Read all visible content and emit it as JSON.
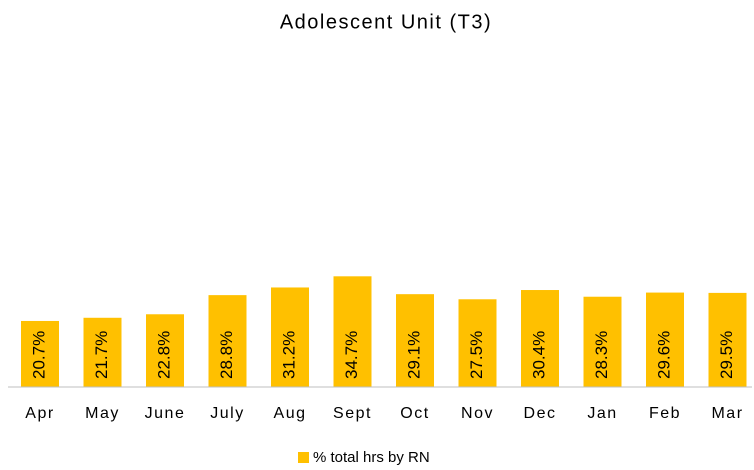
{
  "chart_data": {
    "type": "bar",
    "title": "Adolescent Unit (T3)",
    "categories": [
      "Apr",
      "May",
      "June",
      "July",
      "Aug",
      "Sept",
      "Oct",
      "Nov",
      "Dec",
      "Jan",
      "Feb",
      "Mar"
    ],
    "series": [
      {
        "name": "% total hrs by RN",
        "color": "#ffc000",
        "values": [
          20.7,
          21.7,
          22.8,
          28.8,
          31.2,
          34.7,
          29.1,
          27.5,
          30.4,
          28.3,
          29.6,
          29.5
        ],
        "value_labels": [
          "20.7%",
          "21.7%",
          "22.8%",
          "28.8%",
          "31.2%",
          "34.7%",
          "29.1%",
          "27.5%",
          "30.4%",
          "28.3%",
          "29.6%",
          "29.5%"
        ]
      }
    ],
    "ylim": [
      0,
      100
    ]
  }
}
